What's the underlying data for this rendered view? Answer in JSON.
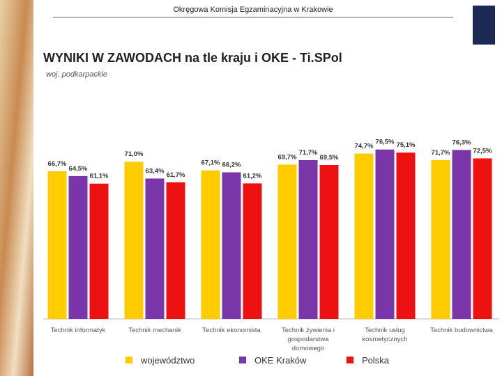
{
  "header": "Okręgowa Komisja Egzaminacyjna w Krakowie",
  "chart_data": {
    "type": "bar",
    "title": "WYNIKI W ZAWODACH na tle kraju i OKE - Ti.SPol",
    "subtitle": "woj. podkarpackie",
    "categories": [
      "Technik informatyk",
      "Technik mechanik",
      "Technik ekonomista",
      "Technik żywienia i gospodarstwa domowego",
      "Technik usług kosmetycznych",
      "Technik budownictwa"
    ],
    "series": [
      {
        "name": "województwo",
        "color": "#ffcc00",
        "values": [
          66.7,
          71.0,
          67.1,
          69.7,
          74.7,
          71.7
        ],
        "value_labels": [
          "66,7%",
          "71,0%",
          "67,1%",
          "69,7%",
          "74,7%",
          "71,7%"
        ]
      },
      {
        "name": "OKE Kraków",
        "color": "#7a35a8",
        "values": [
          64.5,
          63.4,
          66.2,
          71.7,
          76.5,
          76.3
        ],
        "value_labels": [
          "64,5%",
          "63,4%",
          "66,2%",
          "71,7%",
          "76,5%",
          "76,3%"
        ]
      },
      {
        "name": "Polska",
        "color": "#ee1111",
        "values": [
          61.1,
          61.7,
          61.2,
          69.5,
          75.1,
          72.5
        ],
        "value_labels": [
          "61,1%",
          "61,7%",
          "61,2%",
          "69,5%",
          "75,1%",
          "72,5%"
        ]
      }
    ],
    "legend": "bottom"
  }
}
